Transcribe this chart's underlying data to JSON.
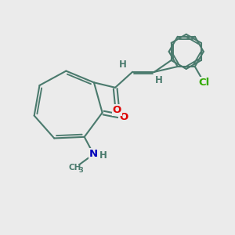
{
  "bg_color": "#ebebeb",
  "bond_color": "#4a7a6d",
  "bond_width": 1.5,
  "atom_colors": {
    "O": "#dd0000",
    "N": "#0000bb",
    "Cl": "#33aa00",
    "H": "#4a7a6d",
    "C": "#4a7a6d"
  },
  "font_size_atom": 9.5,
  "font_size_h": 8.5,
  "font_size_cl": 9.5
}
